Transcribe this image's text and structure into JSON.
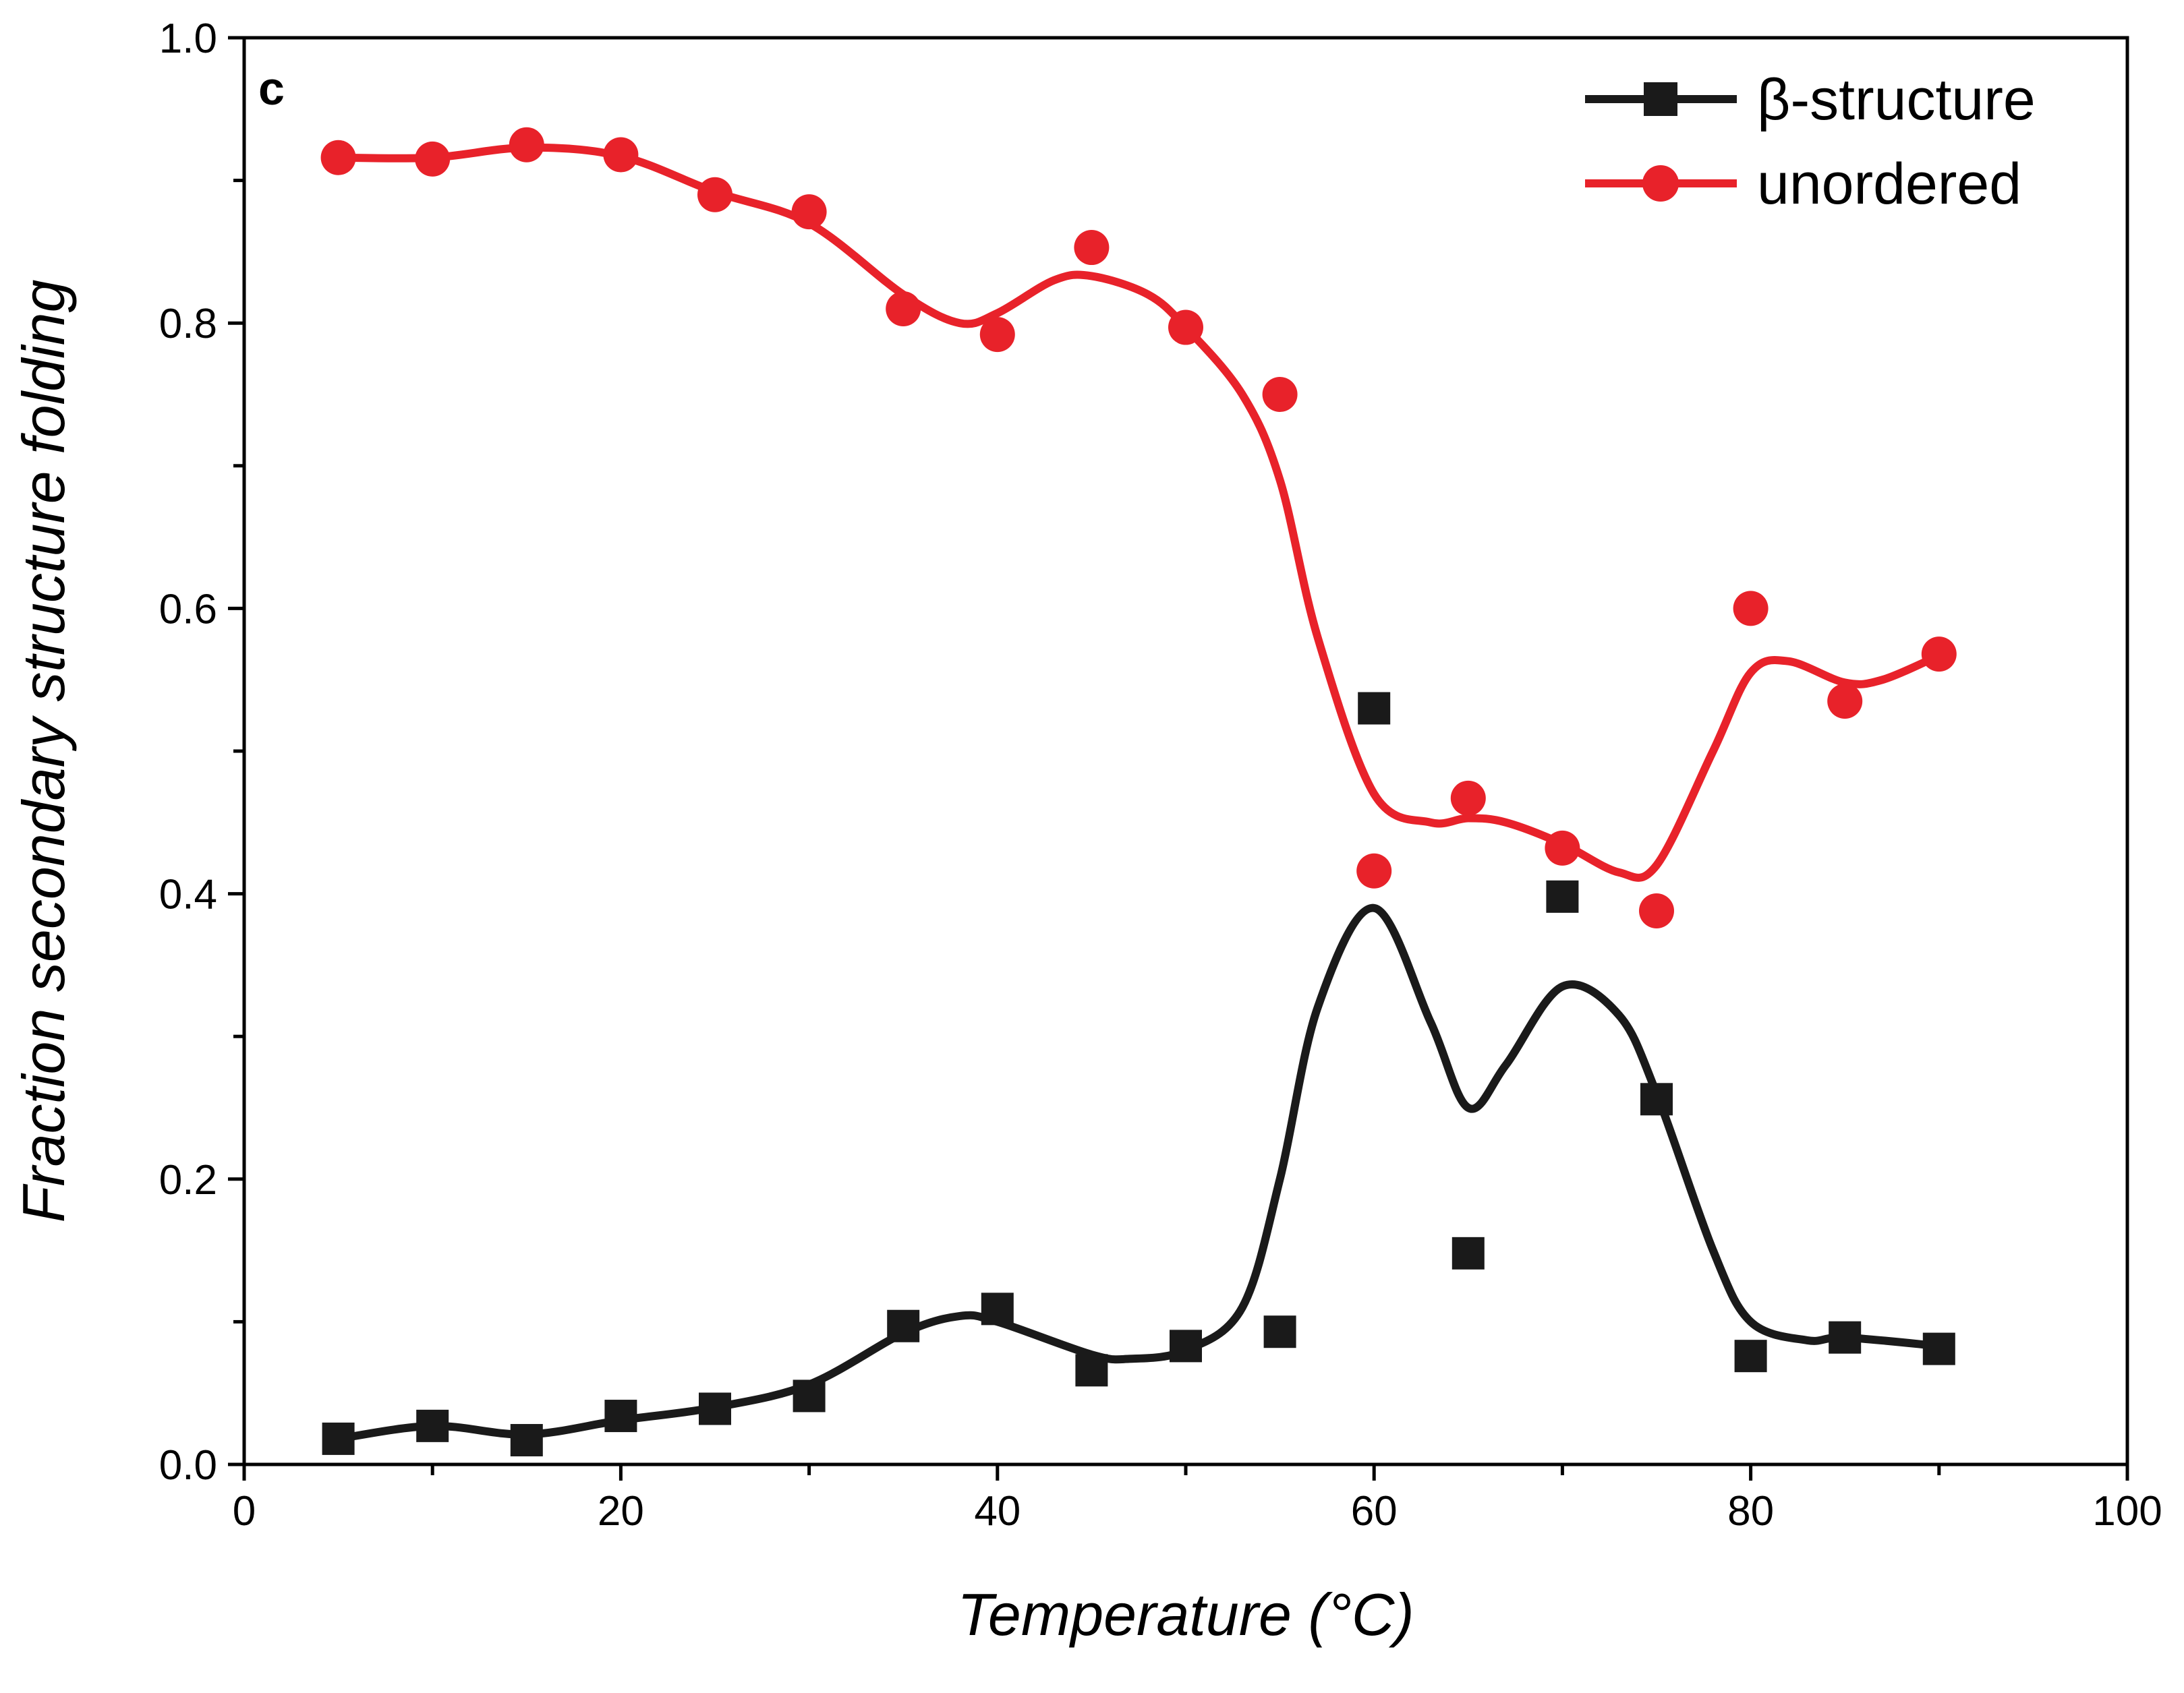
{
  "chart_data": {
    "type": "scatter",
    "panel_label": "c",
    "title": "",
    "xlabel": "Temperature (°C)",
    "ylabel": "Fraction secondary structure folding",
    "xlim": [
      0,
      100
    ],
    "ylim": [
      0,
      1.0
    ],
    "x_ticks": [
      0,
      20,
      40,
      60,
      80,
      100
    ],
    "x_tick_labels": [
      "0",
      "20",
      "40",
      "60",
      "80",
      "100"
    ],
    "y_ticks": [
      0.0,
      0.2,
      0.4,
      0.6,
      0.8,
      1.0
    ],
    "y_tick_labels": [
      "0.0",
      "0.2",
      "0.4",
      "0.6",
      "0.8",
      "1.0"
    ],
    "legend_position": "top-right",
    "x": [
      5,
      10,
      15,
      20,
      25,
      30,
      35,
      40,
      45,
      50,
      55,
      60,
      65,
      70,
      75,
      80,
      85,
      90
    ],
    "series": [
      {
        "name": "β-structure",
        "color": "#1a1a1a",
        "marker": "square",
        "values": [
          0.018,
          0.027,
          0.017,
          0.034,
          0.039,
          0.048,
          0.097,
          0.109,
          0.066,
          0.083,
          0.093,
          0.53,
          0.148,
          0.398,
          0.256,
          0.076,
          0.089,
          0.081
        ],
        "fit_x": [
          5,
          10,
          15,
          20,
          25,
          30,
          35,
          38,
          40,
          45,
          47,
          50,
          53,
          55,
          57,
          60,
          63,
          65,
          67,
          70,
          73,
          75,
          78,
          80,
          83,
          85,
          90
        ],
        "fit_y": [
          0.018,
          0.027,
          0.021,
          0.031,
          0.04,
          0.056,
          0.092,
          0.104,
          0.1,
          0.077,
          0.074,
          0.08,
          0.11,
          0.2,
          0.32,
          0.39,
          0.31,
          0.25,
          0.28,
          0.335,
          0.315,
          0.26,
          0.15,
          0.1,
          0.087,
          0.089,
          0.083
        ]
      },
      {
        "name": "unordered",
        "color": "#e8222a",
        "marker": "circle",
        "values": [
          0.916,
          0.915,
          0.925,
          0.918,
          0.89,
          0.878,
          0.81,
          0.792,
          0.853,
          0.797,
          0.75,
          0.416,
          0.467,
          0.432,
          0.388,
          0.6,
          0.535,
          0.568
        ],
        "fit_x": [
          5,
          10,
          15,
          20,
          25,
          30,
          35,
          38,
          40,
          43,
          45,
          48,
          50,
          53,
          55,
          57,
          60,
          63,
          65,
          67,
          70,
          73,
          75,
          78,
          80,
          82,
          85,
          87,
          90
        ],
        "fit_y": [
          0.916,
          0.916,
          0.923,
          0.917,
          0.892,
          0.87,
          0.82,
          0.8,
          0.807,
          0.83,
          0.833,
          0.82,
          0.797,
          0.75,
          0.69,
          0.58,
          0.47,
          0.45,
          0.453,
          0.45,
          0.435,
          0.415,
          0.42,
          0.5,
          0.555,
          0.563,
          0.548,
          0.55,
          0.567
        ]
      }
    ]
  }
}
